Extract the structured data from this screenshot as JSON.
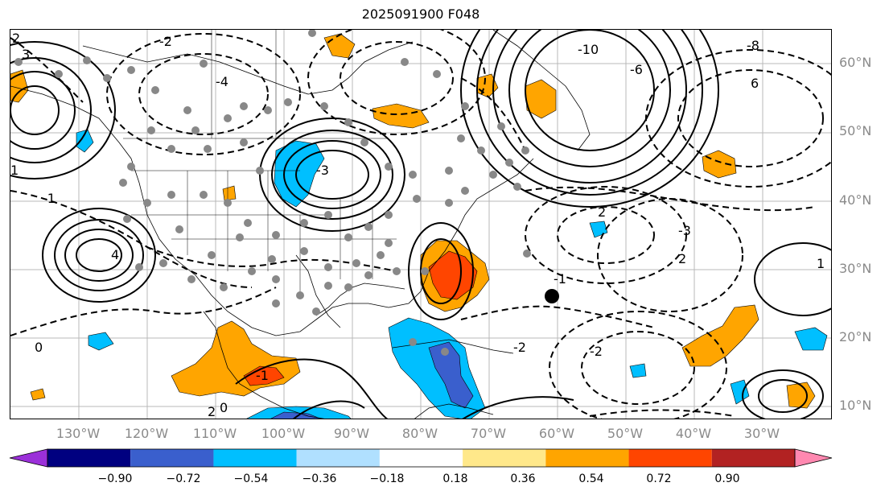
{
  "title": "2025091900 F048",
  "lat_labels": [
    "60°N",
    "50°N",
    "40°N",
    "30°N",
    "20°N",
    "10°N"
  ],
  "lon_labels": [
    "130°W",
    "120°W",
    "110°W",
    "100°W",
    "90°W",
    "80°W",
    "70°W",
    "60°W",
    "50°W",
    "40°W",
    "30°W"
  ],
  "colorbar": {
    "colors": [
      "#9b30d9",
      "#000080",
      "#3a5fcd",
      "#00bfff",
      "#b0e0ff",
      "#ffffff",
      "#ffe88a",
      "#ffa500",
      "#ff4500",
      "#b22222",
      "#ff88b0"
    ],
    "tick_labels": [
      "−0.90",
      "−0.72",
      "−0.54",
      "−0.36",
      "−0.18",
      "0.18",
      "0.36",
      "0.54",
      "0.72",
      "0.90"
    ]
  },
  "contour_labels": [
    "2",
    "3",
    "-2",
    "-4",
    "-1",
    "-3",
    "0",
    "1",
    "4",
    "-8",
    "6",
    "-6",
    "-10",
    "-1",
    "-2",
    "2",
    "-3",
    "-2",
    "2",
    "1",
    "0",
    "-1",
    "2"
  ]
}
